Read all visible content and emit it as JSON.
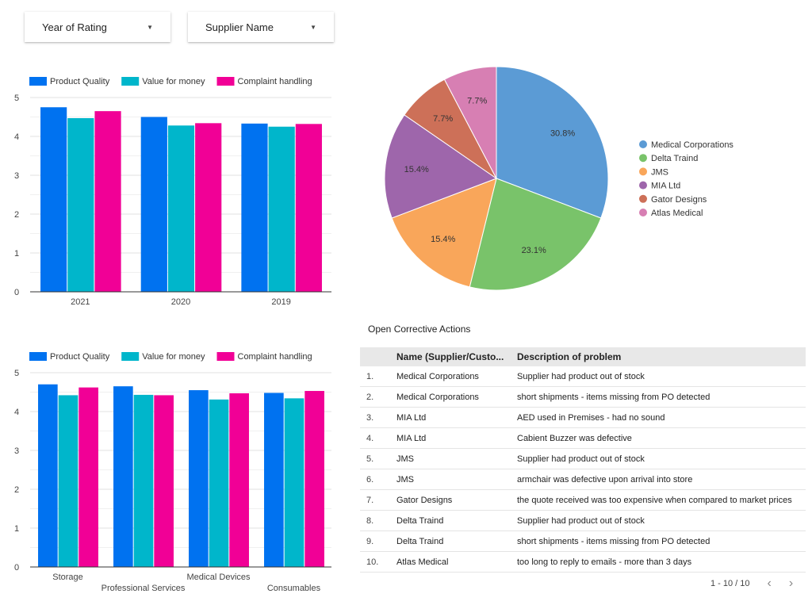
{
  "filters": {
    "year_label": "Year of Rating",
    "supplier_label": "Supplier Name"
  },
  "colors": {
    "product_quality": "#0072f0",
    "value_for_money": "#00b6cb",
    "complaint_handling": "#f10096"
  },
  "chart_data": [
    {
      "type": "bar",
      "categories": [
        "2021",
        "2020",
        "2019"
      ],
      "series": [
        {
          "name": "Product Quality",
          "values": [
            4.75,
            4.5,
            4.33
          ]
        },
        {
          "name": "Value for money",
          "values": [
            4.47,
            4.28,
            4.25
          ]
        },
        {
          "name": "Complaint handling",
          "values": [
            4.65,
            4.34,
            4.32
          ]
        }
      ],
      "ylim": [
        0,
        5
      ],
      "yticks": [
        "0",
        "1",
        "2",
        "3",
        "4",
        "5"
      ],
      "legend": "top-left",
      "grid": true
    },
    {
      "type": "pie",
      "labels": [
        "Medical Corporations",
        "Delta Traind",
        "JMS",
        "MIA Ltd",
        "Gator Designs",
        "Atlas Medical"
      ],
      "values": [
        30.8,
        23.1,
        15.4,
        15.4,
        7.7,
        7.7
      ],
      "value_labels": [
        "30.8%",
        "23.1%",
        "15.4%",
        "15.4%",
        "7.7%",
        "7.7%"
      ],
      "colors": [
        "#5b9bd5",
        "#79c36a",
        "#f9a65a",
        "#9e66ab",
        "#cd7058",
        "#d77fb3"
      ],
      "legend": "right"
    },
    {
      "type": "bar",
      "categories": [
        "Storage",
        "Professional Services",
        "Medical Devices",
        "Consumables"
      ],
      "series": [
        {
          "name": "Product Quality",
          "values": [
            4.7,
            4.65,
            4.55,
            4.48
          ]
        },
        {
          "name": "Value for money",
          "values": [
            4.42,
            4.43,
            4.31,
            4.34
          ]
        },
        {
          "name": "Complaint handling",
          "values": [
            4.62,
            4.42,
            4.47,
            4.53
          ]
        }
      ],
      "ylim": [
        0,
        5
      ],
      "yticks": [
        "0",
        "1",
        "2",
        "3",
        "4",
        "5"
      ],
      "legend": "top-left",
      "grid": true
    }
  ],
  "table": {
    "title": "Open Corrective Actions",
    "headers": [
      "Name (Supplier/Custo...",
      "Description of problem"
    ],
    "rows": [
      {
        "num": "1.",
        "name": "Medical Corporations",
        "desc": "Supplier had product out of stock"
      },
      {
        "num": "2.",
        "name": "Medical Corporations",
        "desc": "short shipments - items missing from PO detected"
      },
      {
        "num": "3.",
        "name": "MIA Ltd",
        "desc": "AED used in Premises - had no sound"
      },
      {
        "num": "4.",
        "name": "MIA Ltd",
        "desc": "Cabient Buzzer was defective"
      },
      {
        "num": "5.",
        "name": "JMS",
        "desc": "Supplier had product out of stock"
      },
      {
        "num": "6.",
        "name": "JMS",
        "desc": "armchair was defective upon arrival into store"
      },
      {
        "num": "7.",
        "name": "Gator Designs",
        "desc": "the quote received was too expensive when compared to market prices"
      },
      {
        "num": "8.",
        "name": "Delta Traind",
        "desc": "Supplier had product out of stock"
      },
      {
        "num": "9.",
        "name": "Delta Traind",
        "desc": "short shipments - items missing from PO detected"
      },
      {
        "num": "10.",
        "name": "Atlas Medical",
        "desc": "too long to reply to emails - more than 3 days"
      }
    ],
    "pagination": "1 - 10 / 10",
    "prev_icon": "chevron-left-icon",
    "next_icon": "chevron-right-icon"
  }
}
